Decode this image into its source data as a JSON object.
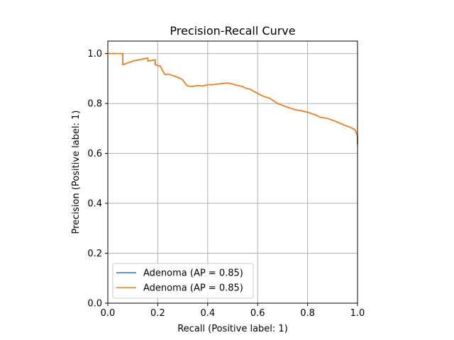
{
  "chart_data": {
    "type": "line",
    "title": "Precision-Recall Curve",
    "xlabel": "Recall (Positive label: 1)",
    "ylabel": "Precision (Positive label: 1)",
    "xlim": [
      0.0,
      1.0
    ],
    "ylim": [
      0.0,
      1.05
    ],
    "x_ticks": [
      "0.0",
      "0.2",
      "0.4",
      "0.6",
      "0.8",
      "1.0"
    ],
    "y_ticks": [
      "0.0",
      "0.2",
      "0.4",
      "0.6",
      "0.8",
      "1.0"
    ],
    "grid": true,
    "legend_position": "lower-left",
    "series": [
      {
        "name": "Adenoma (AP = 0.85)",
        "color": "#1f77b4",
        "x": [
          0.0,
          0.06,
          0.06,
          0.1,
          0.16,
          0.16,
          0.19,
          0.19,
          0.21,
          0.22,
          0.23,
          0.24,
          0.26,
          0.28,
          0.3,
          0.31,
          0.32,
          0.34,
          0.36,
          0.38,
          0.4,
          0.42,
          0.44,
          0.46,
          0.48,
          0.5,
          0.52,
          0.54,
          0.55,
          0.57,
          0.6,
          0.62,
          0.65,
          0.68,
          0.7,
          0.72,
          0.75,
          0.78,
          0.8,
          0.83,
          0.85,
          0.88,
          0.9,
          0.92,
          0.95,
          0.97,
          0.99,
          1.0,
          1.0
        ],
        "y": [
          1.0,
          1.0,
          0.955,
          0.97,
          0.982,
          0.97,
          0.975,
          0.955,
          0.95,
          0.93,
          0.915,
          0.918,
          0.912,
          0.905,
          0.895,
          0.88,
          0.87,
          0.868,
          0.872,
          0.87,
          0.875,
          0.875,
          0.878,
          0.88,
          0.882,
          0.878,
          0.872,
          0.868,
          0.862,
          0.857,
          0.84,
          0.83,
          0.82,
          0.8,
          0.792,
          0.785,
          0.775,
          0.77,
          0.765,
          0.755,
          0.745,
          0.74,
          0.733,
          0.725,
          0.712,
          0.705,
          0.695,
          0.67,
          0.635
        ]
      },
      {
        "name": "Adenoma (AP = 0.85)",
        "color": "#ff7f0e",
        "x": [
          0.0,
          0.06,
          0.06,
          0.1,
          0.16,
          0.16,
          0.19,
          0.19,
          0.21,
          0.22,
          0.23,
          0.24,
          0.26,
          0.28,
          0.3,
          0.31,
          0.32,
          0.34,
          0.36,
          0.38,
          0.4,
          0.42,
          0.44,
          0.46,
          0.48,
          0.5,
          0.52,
          0.54,
          0.55,
          0.57,
          0.6,
          0.62,
          0.65,
          0.68,
          0.7,
          0.72,
          0.75,
          0.78,
          0.8,
          0.83,
          0.85,
          0.88,
          0.9,
          0.92,
          0.95,
          0.97,
          0.99,
          1.0,
          1.0
        ],
        "y": [
          1.0,
          1.0,
          0.955,
          0.97,
          0.982,
          0.97,
          0.975,
          0.955,
          0.95,
          0.93,
          0.915,
          0.918,
          0.912,
          0.905,
          0.895,
          0.88,
          0.87,
          0.868,
          0.872,
          0.87,
          0.875,
          0.875,
          0.878,
          0.88,
          0.882,
          0.878,
          0.872,
          0.868,
          0.862,
          0.857,
          0.84,
          0.83,
          0.82,
          0.8,
          0.792,
          0.785,
          0.775,
          0.77,
          0.765,
          0.755,
          0.745,
          0.74,
          0.733,
          0.725,
          0.712,
          0.705,
          0.695,
          0.67,
          0.635
        ]
      }
    ]
  }
}
